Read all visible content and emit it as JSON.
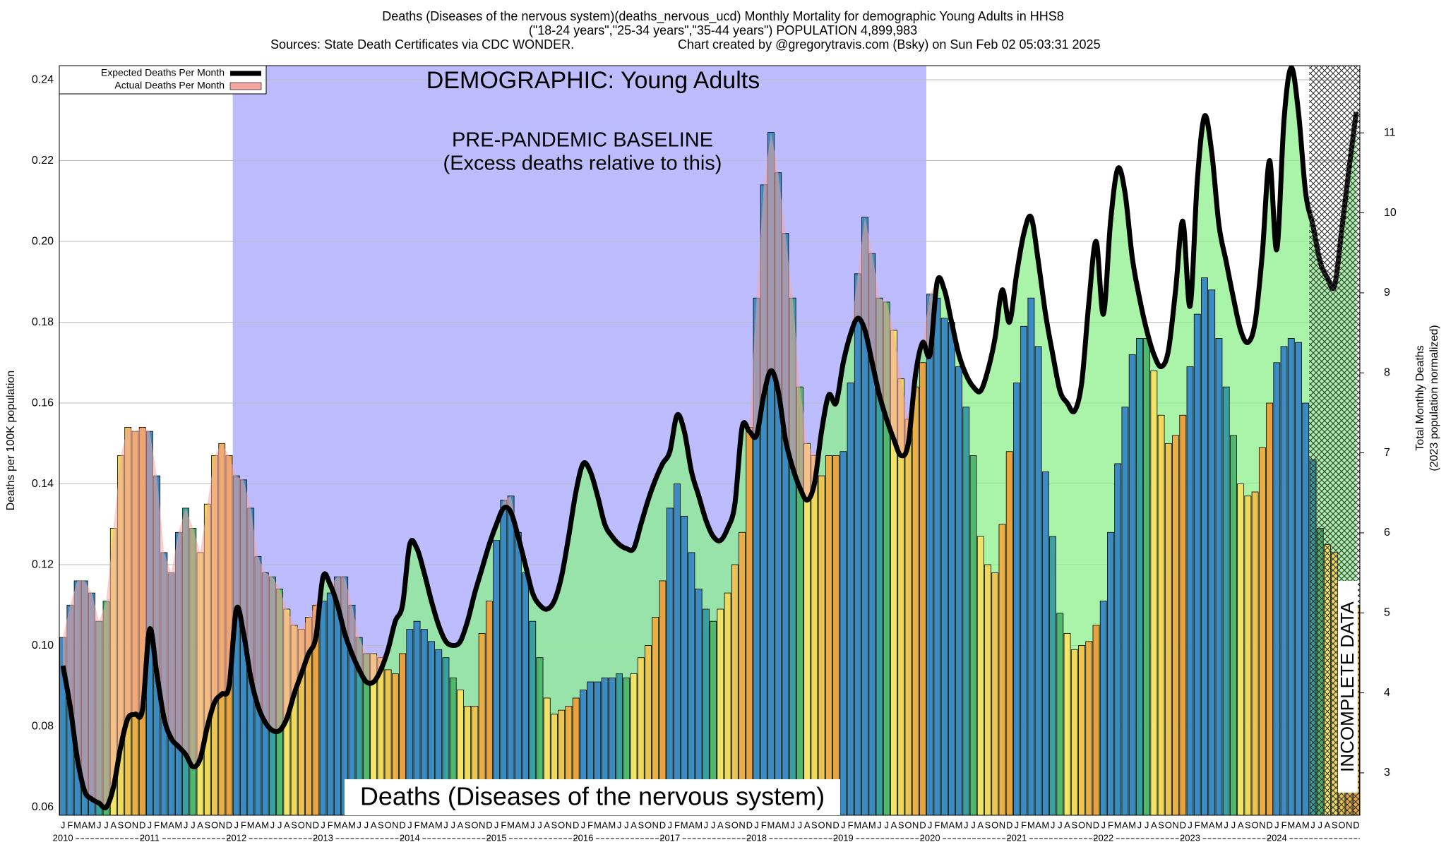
{
  "chart_data": {
    "type": "bar",
    "title": "Deaths (Diseases of the nervous system)(deaths_nervous_ucd) Monthly Mortality for demographic Young Adults in HHS8",
    "subtitle": "(\"18-24 years\",\"25-34 years\",\"35-44 years\") POPULATION 4,899,983",
    "source": "Sources: State Death Certificates via CDC WONDER.",
    "credit": "Chart created by @gregorytravis.com (Bsky) on Sun Feb 02 05:03:31 2025",
    "demographic_label": "DEMOGRAPHIC: Young Adults",
    "baseline": {
      "label": "PRE-PANDEMIC BASELINE",
      "note": "(Excess deaths relative to this)",
      "years": [
        "2012",
        "2019"
      ],
      "color": "#bcbcff"
    },
    "cause_label": "Deaths (Diseases of the nervous system)",
    "incomplete": {
      "label": "INCOMPLETE DATA",
      "months": 7
    },
    "ylabel": "Deaths per 100K population",
    "y2label": "Total Monthly Deaths",
    "y2label_note": "(2023 population normalized)",
    "excess_color": "#8cf08c",
    "month_colors": [
      "#3b8bc2",
      "#3b8bc2",
      "#3b8bc2",
      "#3b8bc2",
      "#3b8bc2",
      "#3a9fa0",
      "#4fb86e",
      "#f2e469",
      "#f0d85c",
      "#ecc453",
      "#eab047",
      "#e8a23f"
    ],
    "categories": [
      "J",
      "F",
      "M",
      "A",
      "M",
      "J",
      "J",
      "A",
      "S",
      "O",
      "N",
      "D",
      "J",
      "F",
      "M",
      "A",
      "M",
      "J",
      "J",
      "A",
      "S",
      "O",
      "N",
      "D",
      "J",
      "F",
      "M",
      "A",
      "M",
      "J",
      "J",
      "A",
      "S",
      "O",
      "N",
      "D",
      "J",
      "F",
      "M",
      "A",
      "M",
      "J",
      "J",
      "A",
      "S",
      "O",
      "N",
      "D",
      "J",
      "F",
      "M",
      "A",
      "M",
      "J",
      "J",
      "A",
      "S",
      "O",
      "N",
      "D",
      "J",
      "F",
      "M",
      "A",
      "M",
      "J",
      "J",
      "A",
      "S",
      "O",
      "N",
      "D",
      "J",
      "F",
      "M",
      "A",
      "M",
      "J",
      "J",
      "A",
      "S",
      "O",
      "N",
      "D",
      "J",
      "F",
      "M",
      "A",
      "M",
      "J",
      "J",
      "A",
      "S",
      "O",
      "N",
      "D",
      "J",
      "F",
      "M",
      "A",
      "M",
      "J",
      "J",
      "A",
      "S",
      "O",
      "N",
      "D",
      "J",
      "F",
      "M",
      "A",
      "M",
      "J",
      "J",
      "A",
      "S",
      "O",
      "N",
      "D",
      "J",
      "F",
      "M",
      "A",
      "M",
      "J",
      "J",
      "A",
      "S",
      "O",
      "N",
      "D",
      "J",
      "F",
      "M",
      "A",
      "M",
      "J",
      "J",
      "A",
      "S",
      "O",
      "N",
      "D",
      "J",
      "F",
      "M",
      "A",
      "M",
      "J",
      "J",
      "A",
      "S",
      "O",
      "N",
      "D",
      "J",
      "F",
      "M",
      "A",
      "M",
      "J",
      "J",
      "A",
      "S",
      "O",
      "N",
      "D",
      "J",
      "F",
      "M",
      "A",
      "M",
      "J",
      "J",
      "A",
      "S",
      "O",
      "N",
      "D"
    ],
    "years": [
      "2010",
      "2011",
      "2012",
      "2013",
      "2014",
      "2015",
      "2016",
      "2017",
      "2018",
      "2019",
      "2020",
      "2021",
      "2022",
      "2023",
      "2024"
    ],
    "ylim": [
      0.058,
      0.2435
    ],
    "yticks": [
      0.06,
      0.08,
      {
        "value": 0.1,
        "label": "0.10"
      },
      0.12,
      0.14,
      0.16,
      0.18,
      {
        "value": 0.2,
        "label": "0.20"
      },
      0.22,
      0.24
    ],
    "y2lim": [
      2.47,
      11.84
    ],
    "y2ticks": [
      3,
      4,
      5,
      6,
      7,
      8,
      9,
      10,
      11
    ],
    "grid": true,
    "legend": "top-left",
    "series": [
      {
        "name": "Expected Deaths Per Month",
        "type": "line",
        "color": "#000000",
        "values": [
          0.095,
          0.085,
          0.072,
          0.064,
          0.062,
          0.061,
          0.06,
          0.065,
          0.075,
          0.082,
          0.083,
          0.084,
          0.104,
          0.093,
          0.082,
          0.077,
          0.075,
          0.073,
          0.07,
          0.072,
          0.08,
          0.086,
          0.088,
          0.09,
          0.109,
          0.103,
          0.092,
          0.085,
          0.081,
          0.079,
          0.079,
          0.082,
          0.088,
          0.093,
          0.098,
          0.102,
          0.117,
          0.115,
          0.11,
          0.103,
          0.098,
          0.094,
          0.091,
          0.091,
          0.094,
          0.099,
          0.106,
          0.11,
          0.125,
          0.124,
          0.118,
          0.111,
          0.105,
          0.101,
          0.1,
          0.101,
          0.106,
          0.113,
          0.119,
          0.125,
          0.13,
          0.134,
          0.133,
          0.127,
          0.12,
          0.113,
          0.11,
          0.109,
          0.111,
          0.117,
          0.127,
          0.138,
          0.145,
          0.143,
          0.137,
          0.13,
          0.127,
          0.125,
          0.124,
          0.124,
          0.13,
          0.136,
          0.141,
          0.145,
          0.148,
          0.157,
          0.153,
          0.143,
          0.137,
          0.131,
          0.127,
          0.126,
          0.129,
          0.135,
          0.154,
          0.153,
          0.152,
          0.162,
          0.168,
          0.163,
          0.151,
          0.144,
          0.139,
          0.136,
          0.14,
          0.153,
          0.162,
          0.16,
          0.17,
          0.177,
          0.181,
          0.178,
          0.17,
          0.162,
          0.156,
          0.151,
          0.147,
          0.15,
          0.167,
          0.175,
          0.172,
          0.19,
          0.188,
          0.18,
          0.172,
          0.167,
          0.164,
          0.163,
          0.168,
          0.176,
          0.188,
          0.18,
          0.192,
          0.202,
          0.206,
          0.195,
          0.182,
          0.172,
          0.163,
          0.16,
          0.158,
          0.165,
          0.185,
          0.2,
          0.182,
          0.205,
          0.218,
          0.212,
          0.196,
          0.186,
          0.178,
          0.172,
          0.169,
          0.173,
          0.188,
          0.205,
          0.184,
          0.215,
          0.231,
          0.222,
          0.204,
          0.195,
          0.186,
          0.178,
          0.175,
          0.18,
          0.197,
          0.22,
          0.198,
          0.23,
          0.243,
          0.232,
          0.212,
          0.204,
          0.195,
          0.191,
          0.189,
          0.203,
          0.218,
          0.232
        ]
      },
      {
        "name": "Actual Deaths Per Month",
        "type": "bar",
        "color": "#f4a6a0",
        "values": [
          0.102,
          0.11,
          0.116,
          0.116,
          0.113,
          0.106,
          0.111,
          0.129,
          0.147,
          0.154,
          0.153,
          0.154,
          0.153,
          0.142,
          0.123,
          0.118,
          0.128,
          0.134,
          0.129,
          0.123,
          0.135,
          0.147,
          0.15,
          0.147,
          0.142,
          0.141,
          0.134,
          0.122,
          0.118,
          0.117,
          0.114,
          0.109,
          0.105,
          0.104,
          0.107,
          0.11,
          0.111,
          0.113,
          0.117,
          0.117,
          0.11,
          0.102,
          0.098,
          0.098,
          0.097,
          0.094,
          0.093,
          0.098,
          0.104,
          0.106,
          0.104,
          0.101,
          0.099,
          0.097,
          0.092,
          0.089,
          0.085,
          0.085,
          0.103,
          0.111,
          0.126,
          0.136,
          0.137,
          0.128,
          0.118,
          0.106,
          0.097,
          0.087,
          0.083,
          0.084,
          0.085,
          0.087,
          0.089,
          0.091,
          0.091,
          0.092,
          0.092,
          0.093,
          0.092,
          0.093,
          0.097,
          0.1,
          0.107,
          0.116,
          0.134,
          0.14,
          0.132,
          0.123,
          0.114,
          0.109,
          0.106,
          0.109,
          0.113,
          0.12,
          0.128,
          0.154,
          0.186,
          0.214,
          0.227,
          0.217,
          0.202,
          0.186,
          0.164,
          0.15,
          0.147,
          0.142,
          0.147,
          0.147,
          0.148,
          0.165,
          0.192,
          0.206,
          0.197,
          0.186,
          0.185,
          0.178,
          0.166,
          0.156,
          0.164,
          0.17,
          0.187,
          0.186,
          0.181,
          0.18,
          0.169,
          0.159,
          0.147,
          0.127,
          0.12,
          0.118,
          0.13,
          0.148,
          0.165,
          0.179,
          0.186,
          0.174,
          0.143,
          0.127,
          0.108,
          0.103,
          0.099,
          0.1,
          0.101,
          0.105,
          0.111,
          0.128,
          0.145,
          0.159,
          0.172,
          0.176,
          0.176,
          0.168,
          0.157,
          0.15,
          0.152,
          0.157,
          0.169,
          0.182,
          0.191,
          0.188,
          0.176,
          0.164,
          0.152,
          0.14,
          0.137,
          0.138,
          0.149,
          0.16,
          0.17,
          0.174,
          0.176,
          0.175,
          0.16,
          0.146,
          0.129,
          0.125,
          0.123,
          0.115,
          0.11,
          0.11
        ]
      }
    ]
  }
}
